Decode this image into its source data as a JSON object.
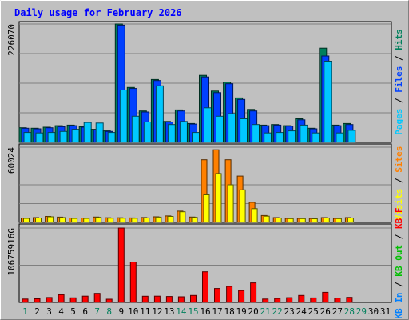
{
  "chart_data": {
    "type": "bar",
    "title": "Daily usage for February 2026",
    "categories": [
      "1",
      "2",
      "3",
      "4",
      "5",
      "6",
      "7",
      "8",
      "9",
      "10",
      "11",
      "12",
      "13",
      "14",
      "15",
      "16",
      "17",
      "18",
      "19",
      "20",
      "21",
      "22",
      "23",
      "24",
      "25",
      "26",
      "27",
      "28",
      "29",
      "30",
      "31"
    ],
    "weekend_days": [
      "1",
      "7",
      "8",
      "14",
      "15",
      "21",
      "22",
      "28",
      "29"
    ],
    "panels": [
      {
        "id": "hits",
        "max_label": "226070",
        "ylim": [
          0,
          226070
        ],
        "legend": [
          {
            "label": "Pages",
            "color": "#00c8ff"
          },
          {
            "label": "Files",
            "color": "#0040ff"
          },
          {
            "label": "Hits",
            "color": "#00805c"
          }
        ],
        "series": [
          {
            "name": "Hits",
            "color": "#00805c",
            "values": [
              28000,
              27000,
              29000,
              32000,
              33000,
              30000,
              25000,
              22000,
              226070,
              105000,
              60000,
              120000,
              40000,
              62000,
              36000,
              128000,
              98000,
              115000,
              85000,
              63000,
              33000,
              34000,
              32000,
              45000,
              27000,
              180000,
              33000,
              36000,
              0,
              0,
              0
            ]
          },
          {
            "name": "Files",
            "color": "#0040ff",
            "values": [
              27000,
              26000,
              28000,
              30000,
              32000,
              29000,
              24000,
              21000,
              224000,
              103000,
              58000,
              118000,
              39000,
              60000,
              35000,
              125000,
              95000,
              112000,
              82000,
              60000,
              32000,
              33000,
              31000,
              43000,
              26000,
              165000,
              32000,
              34000,
              0,
              0,
              0
            ]
          },
          {
            "name": "Pages",
            "color": "#00c8ff",
            "values": [
              19000,
              18000,
              19000,
              21000,
              25000,
              38000,
              37000,
              19000,
              100000,
              50000,
              39000,
              108000,
              34000,
              40000,
              19000,
              66000,
              50000,
              55000,
              45000,
              34000,
              18000,
              19000,
              22000,
              33000,
              18000,
              155000,
              18000,
              23000,
              0,
              0,
              0
            ]
          }
        ]
      },
      {
        "id": "visits",
        "max_label": "60024",
        "ylim": [
          0,
          60024
        ],
        "legend": [
          {
            "label": "Visits",
            "color": "#ffff00"
          },
          {
            "label": "Sites",
            "color": "#ff8000"
          }
        ],
        "series": [
          {
            "name": "Sites",
            "color": "#ff8000",
            "values": [
              3500,
              3800,
              4800,
              4200,
              3500,
              3500,
              4300,
              3700,
              3700,
              3600,
              3900,
              4500,
              5200,
              9000,
              4300,
              50000,
              58000,
              50000,
              37000,
              16000,
              5500,
              3800,
              3200,
              3200,
              3100,
              3800,
              3200,
              3800,
              0,
              0,
              0
            ]
          },
          {
            "name": "Visits",
            "color": "#ffff00",
            "values": [
              3200,
              3500,
              4500,
              3800,
              3200,
              3200,
              4000,
              3400,
              3400,
              3300,
              3600,
              4200,
              4800,
              8500,
              4000,
              22000,
              39000,
              30000,
              26000,
              11000,
              5000,
              3500,
              3000,
              3000,
              2900,
              3500,
              3000,
              3500,
              0,
              0,
              0
            ]
          }
        ]
      },
      {
        "id": "kbytes",
        "max_label": "10675916G",
        "ylim": [
          0,
          10675916
        ],
        "legend": [
          {
            "label": "KB In",
            "color": "#0080ff"
          },
          {
            "label": "KB Out",
            "color": "#00c000"
          },
          {
            "label": "KB F",
            "color": "#ff0000"
          }
        ],
        "series": [
          {
            "name": "KB F",
            "color": "#ff0000",
            "values": [
              480000,
              520000,
              700000,
              1100000,
              650000,
              900000,
              1300000,
              460000,
              10675916,
              5800000,
              880000,
              900000,
              850000,
              800000,
              1000000,
              4400000,
              2000000,
              2300000,
              1700000,
              2800000,
              480000,
              560000,
              680000,
              1000000,
              640000,
              1450000,
              620000,
              720000,
              0,
              0,
              0
            ]
          }
        ]
      }
    ]
  }
}
